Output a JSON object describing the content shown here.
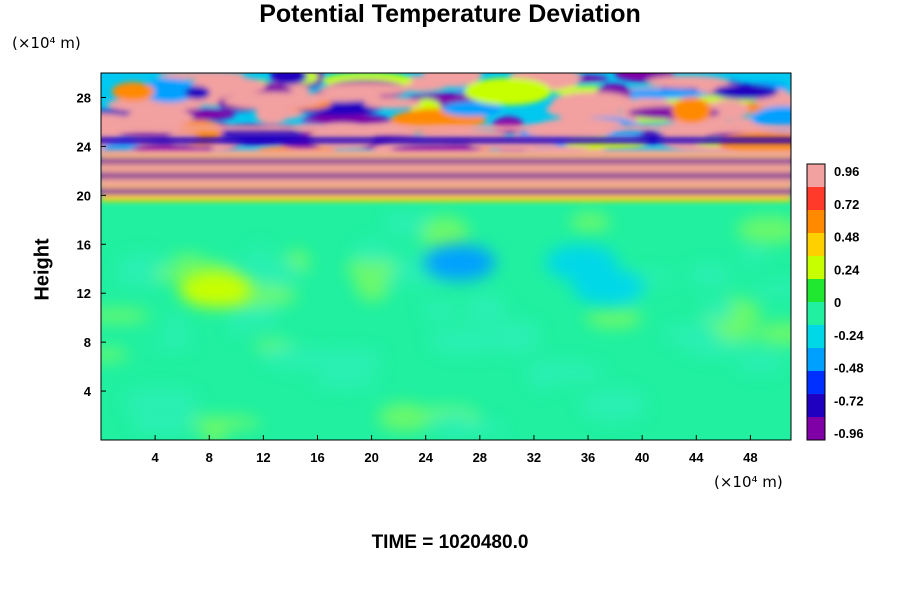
{
  "chart_data": {
    "type": "heatmap",
    "title": "Potential Temperature Deviation",
    "xlabel": "",
    "ylabel": "Height",
    "x_unit": "(×10⁴ m)",
    "y_unit": "(×10⁴ m)",
    "xlim": [
      0,
      51
    ],
    "ylim": [
      0,
      30
    ],
    "x_ticks": [
      "4",
      "8",
      "12",
      "16",
      "20",
      "24",
      "28",
      "32",
      "36",
      "40",
      "44",
      "48"
    ],
    "y_ticks": [
      "4",
      "8",
      "12",
      "16",
      "20",
      "24",
      "28"
    ],
    "colorbar": {
      "range": [
        -0.96,
        0.96
      ],
      "tick_labels": [
        "0.96",
        "0.72",
        "0.48",
        "0.24",
        "0",
        "-0.24",
        "-0.48",
        "-0.72",
        "-0.96"
      ],
      "colors": [
        "#f2a0a0",
        "#ff3a2a",
        "#ff8a00",
        "#ffd000",
        "#c8ff00",
        "#20e830",
        "#20f0a0",
        "#00d8e8",
        "#00a0ff",
        "#0030ff",
        "#2000c0",
        "#8000a8"
      ]
    },
    "field_regions": {
      "lower_background_value": 0.0,
      "stratified_layers_height_range": [
        19.5,
        23.5
      ],
      "upper_turbulent_height_range": [
        23.5,
        30
      ],
      "layer_bands": [
        {
          "y": 20.3,
          "value": -0.96
        },
        {
          "y": 21.0,
          "value": 0.96
        },
        {
          "y": 21.6,
          "value": -0.96
        },
        {
          "y": 22.2,
          "value": 0.96
        },
        {
          "y": 22.8,
          "value": -0.96
        },
        {
          "y": 23.5,
          "value": 0.96
        },
        {
          "y": 24.5,
          "value": -0.72
        },
        {
          "y": 25.5,
          "value": 0.96
        }
      ],
      "features": [
        {
          "x": 8.5,
          "y": 12.3,
          "value": 0.3
        },
        {
          "x": 26.5,
          "y": 14.5,
          "value": -0.5
        },
        {
          "x": 35.5,
          "y": 14.5,
          "value": -0.3
        },
        {
          "x": 37.5,
          "y": 12.5,
          "value": -0.2
        }
      ]
    },
    "annotation": "TIME = 1020480.0"
  }
}
